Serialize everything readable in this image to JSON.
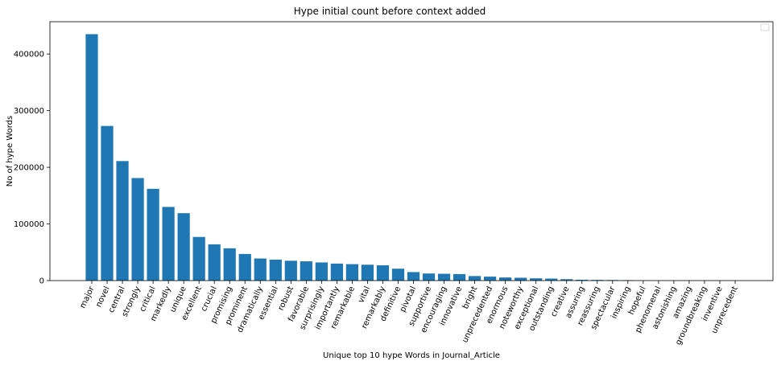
{
  "chart_data": {
    "type": "bar",
    "title": "Hype initial count before context added",
    "xlabel": "Unique top 10 hype Words in Journal_Article",
    "ylabel": "No of hype Words",
    "ylim": [
      0,
      457000
    ],
    "yticks": [
      0,
      100000,
      200000,
      300000,
      400000
    ],
    "grid": false,
    "legend": "top-right (empty)",
    "bar_color": "#1f77b4",
    "categories": [
      "major",
      "novel",
      "central",
      "strongly",
      "critical",
      "markedly",
      "unique",
      "excellent",
      "crucial",
      "promising",
      "prominent",
      "dramatically",
      "essential",
      "robust",
      "favorable",
      "surprisingly",
      "importantly",
      "remarkable",
      "vital",
      "remarkably",
      "definitive",
      "pivotal",
      "supportive",
      "encouraging",
      "innovative",
      "bright",
      "unprecedented",
      "enormous",
      "noteworthy",
      "exceptional",
      "outstanding",
      "creative",
      "assuring",
      "reassuring",
      "spectacular",
      "inspiring",
      "hopeful",
      "phenomenal",
      "astonishing",
      "amazing",
      "groundbreaking",
      "inventive",
      "unprecedent"
    ],
    "values": [
      435000,
      273000,
      211000,
      181000,
      162000,
      130000,
      119000,
      77000,
      64000,
      57000,
      47000,
      39000,
      37000,
      35000,
      34000,
      32000,
      30000,
      29000,
      28000,
      27000,
      21000,
      15000,
      12500,
      12000,
      11500,
      8000,
      7000,
      5500,
      5000,
      4000,
      3500,
      2500,
      1500,
      1200,
      1000,
      800,
      300,
      200,
      150,
      100,
      80,
      50,
      30
    ]
  }
}
